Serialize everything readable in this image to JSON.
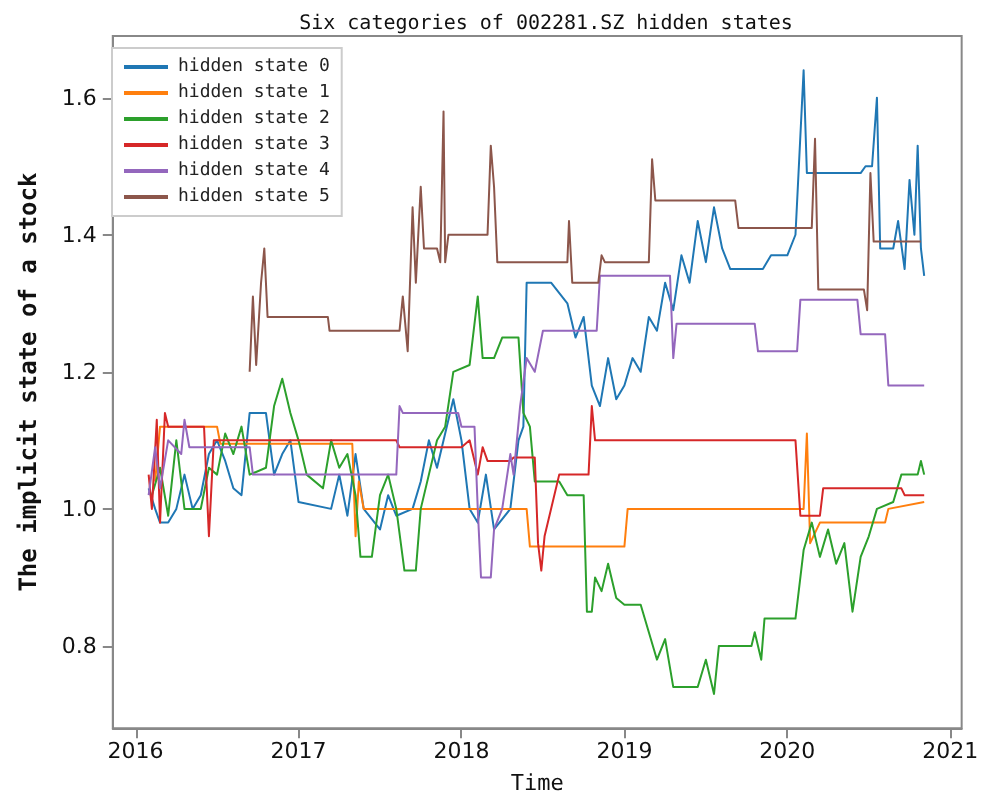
{
  "chart_data": {
    "type": "line",
    "title": "Six categories of 002281.SZ hidden states",
    "xlabel": "Time",
    "ylabel": "The implicit state of a stock",
    "xlim": [
      2015.86,
      2021.07
    ],
    "xticks": [
      2016,
      2017,
      2018,
      2019,
      2020,
      2021
    ],
    "ylim": [
      0.68,
      1.69
    ],
    "yticks": [
      0.8,
      {
        "value": 1,
        "label": "1.0"
      },
      1.2,
      1.4,
      1.6
    ],
    "grid": false,
    "legend": "top left",
    "series": [
      {
        "name": "hidden state 0",
        "color": "#1f77b4",
        "x": [
          2016.08,
          2016.12,
          2016.15,
          2016.2,
          2016.25,
          2016.3,
          2016.35,
          2016.4,
          2016.45,
          2016.5,
          2016.55,
          2016.6,
          2016.65,
          2016.7,
          2016.8,
          2016.85,
          2016.9,
          2016.95,
          2017.0,
          2017.2,
          2017.25,
          2017.3,
          2017.35,
          2017.4,
          2017.5,
          2017.55,
          2017.6,
          2017.7,
          2017.75,
          2017.8,
          2017.85,
          2017.95,
          2018.0,
          2018.05,
          2018.1,
          2018.15,
          2018.2,
          2018.3,
          2018.35,
          2018.38,
          2018.4,
          2018.55,
          2018.65,
          2018.7,
          2018.75,
          2018.8,
          2018.85,
          2018.9,
          2018.95,
          2019.0,
          2019.05,
          2019.1,
          2019.15,
          2019.2,
          2019.25,
          2019.3,
          2019.35,
          2019.4,
          2019.45,
          2019.5,
          2019.55,
          2019.6,
          2019.65,
          2019.85,
          2019.9,
          2020.0,
          2020.05,
          2020.1,
          2020.12,
          2020.45,
          2020.48,
          2020.52,
          2020.55,
          2020.57,
          2020.65,
          2020.68,
          2020.72,
          2020.75,
          2020.78,
          2020.8,
          2020.82,
          2020.84
        ],
        "values": [
          1.03,
          1.0,
          0.98,
          0.98,
          1.0,
          1.05,
          1.0,
          1.02,
          1.08,
          1.1,
          1.07,
          1.03,
          1.02,
          1.14,
          1.14,
          1.05,
          1.08,
          1.1,
          1.01,
          1.0,
          1.05,
          0.99,
          1.08,
          1.0,
          0.97,
          1.02,
          0.99,
          1.0,
          1.04,
          1.1,
          1.06,
          1.16,
          1.1,
          1.0,
          0.98,
          1.05,
          0.97,
          1.0,
          1.1,
          1.12,
          1.33,
          1.33,
          1.3,
          1.25,
          1.28,
          1.18,
          1.15,
          1.22,
          1.16,
          1.18,
          1.22,
          1.2,
          1.28,
          1.26,
          1.33,
          1.29,
          1.37,
          1.33,
          1.42,
          1.36,
          1.44,
          1.38,
          1.35,
          1.35,
          1.37,
          1.37,
          1.4,
          1.64,
          1.49,
          1.49,
          1.5,
          1.5,
          1.6,
          1.38,
          1.38,
          1.42,
          1.35,
          1.48,
          1.4,
          1.53,
          1.38,
          1.34
        ]
      },
      {
        "name": "hidden state 1",
        "color": "#ff7f0e",
        "x": [
          2016.12,
          2016.15,
          2016.5,
          2016.52,
          2017.33,
          2017.35,
          2017.37,
          2017.4,
          2018.4,
          2018.42,
          2019.0,
          2019.02,
          2020.1,
          2020.12,
          2020.14,
          2020.2,
          2020.6,
          2020.62,
          2020.84
        ],
        "values": [
          1.04,
          1.12,
          1.12,
          1.095,
          1.095,
          0.96,
          1.04,
          1.0,
          1.0,
          0.945,
          0.945,
          1.0,
          1.0,
          1.11,
          0.95,
          0.98,
          0.98,
          1.0,
          1.01
        ]
      },
      {
        "name": "hidden state 2",
        "color": "#2ca02c",
        "x": [
          2016.1,
          2016.15,
          2016.2,
          2016.25,
          2016.3,
          2016.4,
          2016.45,
          2016.5,
          2016.55,
          2016.6,
          2016.65,
          2016.7,
          2016.8,
          2016.85,
          2016.9,
          2016.95,
          2017.0,
          2017.05,
          2017.15,
          2017.2,
          2017.25,
          2017.3,
          2017.35,
          2017.38,
          2017.45,
          2017.5,
          2017.55,
          2017.6,
          2017.65,
          2017.72,
          2017.75,
          2017.8,
          2017.85,
          2017.9,
          2017.95,
          2018.05,
          2018.1,
          2018.13,
          2018.2,
          2018.25,
          2018.35,
          2018.38,
          2018.42,
          2018.45,
          2018.6,
          2018.65,
          2018.75,
          2018.77,
          2018.8,
          2018.82,
          2018.86,
          2018.9,
          2018.95,
          2019.0,
          2019.1,
          2019.15,
          2019.2,
          2019.25,
          2019.3,
          2019.45,
          2019.5,
          2019.55,
          2019.58,
          2019.78,
          2019.8,
          2019.84,
          2019.86,
          2020.05,
          2020.1,
          2020.15,
          2020.2,
          2020.25,
          2020.3,
          2020.35,
          2020.4,
          2020.45,
          2020.5,
          2020.55,
          2020.65,
          2020.7,
          2020.8,
          2020.82,
          2020.84
        ],
        "values": [
          1.02,
          1.06,
          0.99,
          1.1,
          1.0,
          1.0,
          1.06,
          1.05,
          1.11,
          1.08,
          1.12,
          1.05,
          1.06,
          1.15,
          1.19,
          1.14,
          1.1,
          1.05,
          1.03,
          1.1,
          1.06,
          1.08,
          1.02,
          0.93,
          0.93,
          1.02,
          1.05,
          1.0,
          0.91,
          0.91,
          1.0,
          1.05,
          1.1,
          1.12,
          1.2,
          1.21,
          1.31,
          1.22,
          1.22,
          1.25,
          1.25,
          1.14,
          1.12,
          1.04,
          1.04,
          1.02,
          1.02,
          0.85,
          0.85,
          0.9,
          0.88,
          0.92,
          0.87,
          0.86,
          0.86,
          0.82,
          0.78,
          0.81,
          0.74,
          0.74,
          0.78,
          0.73,
          0.8,
          0.8,
          0.82,
          0.78,
          0.84,
          0.84,
          0.94,
          0.98,
          0.93,
          0.97,
          0.92,
          0.95,
          0.85,
          0.93,
          0.96,
          1.0,
          1.01,
          1.05,
          1.05,
          1.07,
          1.05
        ]
      },
      {
        "name": "hidden state 3",
        "color": "#d62728",
        "x": [
          2016.08,
          2016.1,
          2016.13,
          2016.15,
          2016.18,
          2016.2,
          2016.42,
          2016.45,
          2016.48,
          2017.6,
          2017.62,
          2018.0,
          2018.05,
          2018.1,
          2018.13,
          2018.16,
          2018.3,
          2018.32,
          2018.45,
          2018.47,
          2018.49,
          2018.51,
          2018.6,
          2018.78,
          2018.8,
          2018.82,
          2020.05,
          2020.08,
          2020.2,
          2020.22,
          2020.7,
          2020.72,
          2020.84
        ],
        "values": [
          1.05,
          1.0,
          1.13,
          0.98,
          1.14,
          1.12,
          1.12,
          0.96,
          1.1,
          1.1,
          1.09,
          1.09,
          1.1,
          1.05,
          1.09,
          1.07,
          1.07,
          1.075,
          1.075,
          0.95,
          0.91,
          0.96,
          1.05,
          1.05,
          1.15,
          1.1,
          1.1,
          0.99,
          0.99,
          1.03,
          1.03,
          1.02,
          1.02
        ]
      },
      {
        "name": "hidden state 4",
        "color": "#9467bd",
        "x": [
          2016.08,
          2016.12,
          2016.15,
          2016.2,
          2016.28,
          2016.3,
          2016.33,
          2016.7,
          2016.72,
          2017.6,
          2017.62,
          2017.64,
          2017.98,
          2018.0,
          2018.08,
          2018.1,
          2018.12,
          2018.18,
          2018.2,
          2018.25,
          2018.3,
          2018.32,
          2018.36,
          2018.4,
          2018.45,
          2018.5,
          2018.83,
          2018.85,
          2019.28,
          2019.3,
          2019.32,
          2019.8,
          2019.82,
          2020.06,
          2020.08,
          2020.43,
          2020.45,
          2020.6,
          2020.62,
          2020.84
        ],
        "values": [
          1.02,
          1.09,
          1.03,
          1.1,
          1.08,
          1.13,
          1.09,
          1.09,
          1.05,
          1.05,
          1.15,
          1.14,
          1.14,
          1.12,
          1.12,
          1.0,
          0.9,
          0.9,
          0.97,
          1.0,
          1.08,
          1.05,
          1.15,
          1.22,
          1.2,
          1.26,
          1.26,
          1.34,
          1.34,
          1.22,
          1.27,
          1.27,
          1.23,
          1.23,
          1.305,
          1.305,
          1.255,
          1.255,
          1.18,
          1.18
        ]
      },
      {
        "name": "hidden state 5",
        "color": "#8c564b",
        "x": [
          2016.7,
          2016.72,
          2016.74,
          2016.77,
          2016.79,
          2016.81,
          2017.18,
          2017.19,
          2017.62,
          2017.64,
          2017.67,
          2017.7,
          2017.72,
          2017.75,
          2017.77,
          2017.85,
          2017.87,
          2017.89,
          2017.9,
          2017.92,
          2018.16,
          2018.18,
          2018.2,
          2018.22,
          2018.65,
          2018.66,
          2018.68,
          2018.84,
          2018.86,
          2018.88,
          2019.15,
          2019.17,
          2019.19,
          2019.21,
          2019.68,
          2019.7,
          2020.15,
          2020.17,
          2020.19,
          2020.47,
          2020.49,
          2020.51,
          2020.53,
          2020.82
        ],
        "values": [
          1.2,
          1.31,
          1.21,
          1.33,
          1.38,
          1.28,
          1.28,
          1.26,
          1.26,
          1.31,
          1.23,
          1.44,
          1.33,
          1.47,
          1.38,
          1.38,
          1.36,
          1.58,
          1.36,
          1.4,
          1.4,
          1.53,
          1.47,
          1.36,
          1.36,
          1.42,
          1.33,
          1.33,
          1.37,
          1.36,
          1.36,
          1.51,
          1.45,
          1.45,
          1.45,
          1.41,
          1.41,
          1.54,
          1.32,
          1.32,
          1.29,
          1.49,
          1.39,
          1.39
        ]
      }
    ]
  }
}
